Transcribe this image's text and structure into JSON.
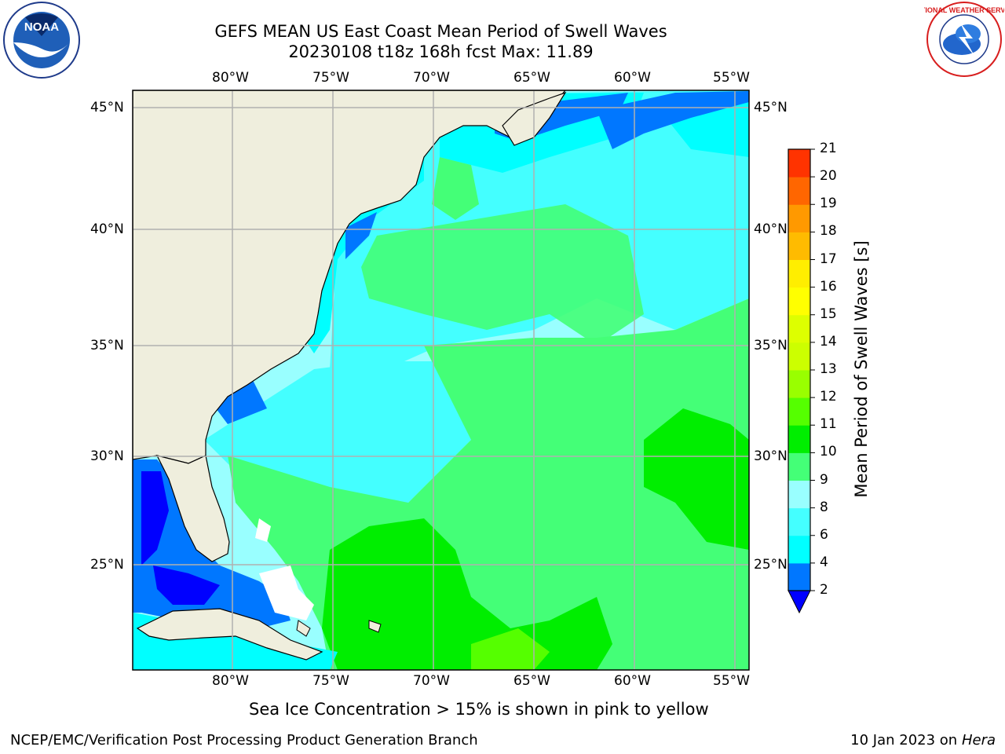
{
  "header": {
    "title_line1": "GEFS MEAN US East Coast Mean Period of Swell Waves",
    "title_line2": "20230108 t18z 168h fcst   Max: 11.89"
  },
  "logos": {
    "left": {
      "text": "NOAA",
      "icon": "noaa-logo"
    },
    "right": {
      "text": "NATIONAL WEATHER SERVICE",
      "icon": "nws-logo"
    }
  },
  "map": {
    "lon_labels": [
      "80°W",
      "75°W",
      "70°W",
      "65°W",
      "60°W",
      "55°W"
    ],
    "lat_labels": [
      "45°N",
      "40°N",
      "35°N",
      "30°N",
      "25°N"
    ],
    "land_color": "#efeedd",
    "gridline_color": "#b0b0b0"
  },
  "colorbar": {
    "label": "Mean Period of Swell Waves [s]",
    "ticks": [
      "2",
      "4",
      "6",
      "8",
      "9",
      "10",
      "11",
      "12",
      "13",
      "14",
      "15",
      "16",
      "17",
      "18",
      "19",
      "20",
      "21"
    ],
    "colors": [
      "#0077ff",
      "#00ffff",
      "#44ffff",
      "#99ffff",
      "#44ff77",
      "#00ee00",
      "#55ff00",
      "#99ff00",
      "#ccff00",
      "#ddff00",
      "#ffff00",
      "#ffee00",
      "#ffbb00",
      "#ff9900",
      "#ff6600",
      "#ff3300"
    ],
    "under_color": "#0000ff"
  },
  "footer": {
    "note": "Sea Ice Concentration > 15% is shown in pink to yellow",
    "left": "NCEP/EMC/Verification Post Processing Product Generation Branch",
    "right_date": "10 Jan 2023 on ",
    "right_host": "Hera"
  }
}
